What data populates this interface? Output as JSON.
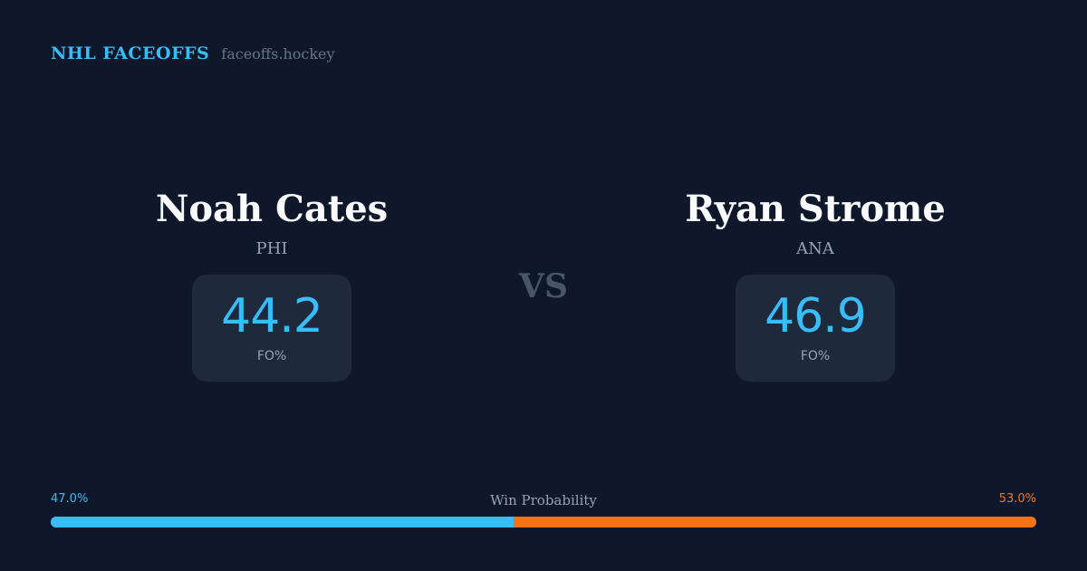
{
  "brand": {
    "title": "NHL FACEOFFS",
    "site": "faceoffs.hockey"
  },
  "players": {
    "left": {
      "name": "Noah Cates",
      "team": "PHI",
      "stat_value": "44.2",
      "stat_label": "FO%"
    },
    "right": {
      "name": "Ryan Strome",
      "team": "ANA",
      "stat_value": "46.9",
      "stat_label": "FO%"
    }
  },
  "vs_label": "VS",
  "win_probability": {
    "title": "Win Probability",
    "left_label": "47.0%",
    "right_label": "53.0%",
    "left_value": 0.47,
    "right_value": 0.53
  },
  "colors": {
    "background": "#0f172a",
    "card": "#1e293b",
    "accent_left": "#38bdf8",
    "accent_right": "#f97316",
    "muted": "#94a3b8",
    "vs": "#475569"
  }
}
